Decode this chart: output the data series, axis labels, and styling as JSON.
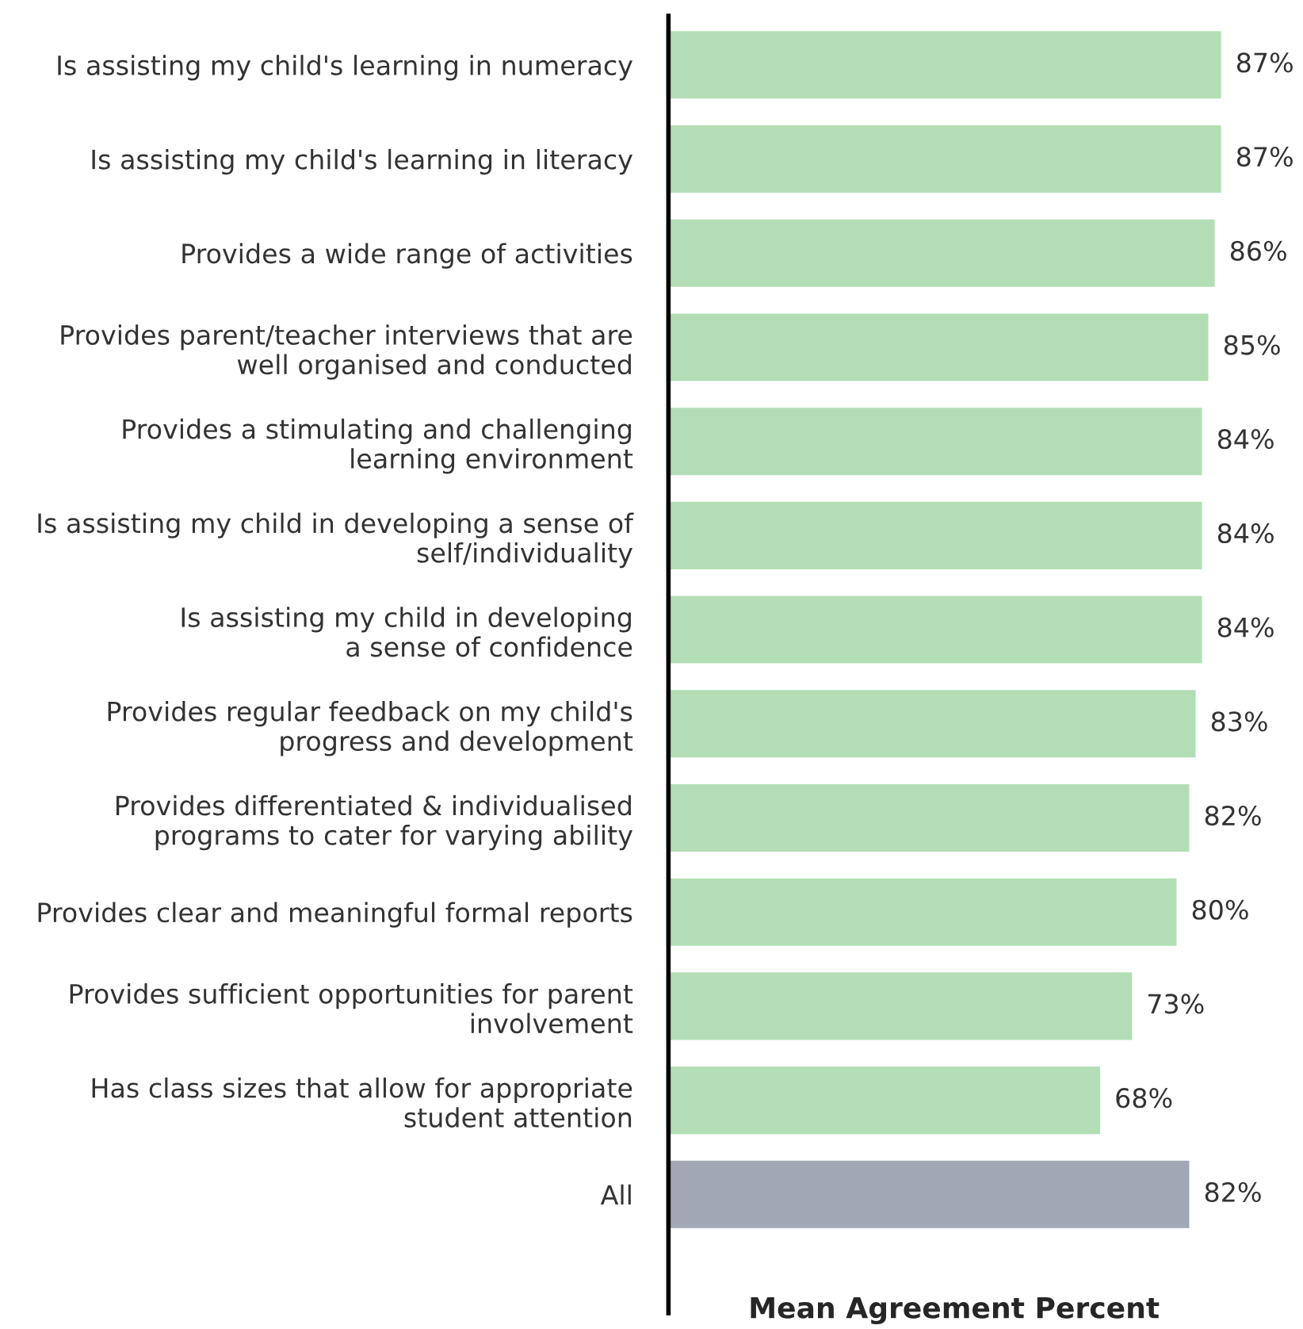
{
  "chart_data": {
    "type": "bar",
    "orientation": "horizontal",
    "xlabel": "Mean Agreement Percent",
    "categories": [
      "Is assisting my child's learning in numeracy",
      "Is assisting my child's learning in literacy",
      "Provides a wide range of activities",
      "Provides parent/teacher interviews that are\nwell organised and conducted",
      "Provides a stimulating and challenging\nlearning environment",
      "Is assisting my child in developing a sense of\nself/individuality",
      "Is assisting my child in developing\na sense of confidence",
      "Provides regular feedback on my child's\nprogress and development",
      "Provides differentiated & individualised\nprograms to cater for varying ability",
      "Provides clear and meaningful formal reports",
      "Provides sufficient opportunities for parent\ninvolvement",
      "Has class sizes that allow for appropriate\nstudent attention",
      "All"
    ],
    "values": [
      87,
      87,
      86,
      85,
      84,
      84,
      84,
      83,
      82,
      80,
      73,
      68,
      82
    ],
    "value_labels": [
      "87%",
      "87%",
      "86%",
      "85%",
      "84%",
      "84%",
      "84%",
      "83%",
      "82%",
      "80%",
      "73%",
      "68%",
      "82%"
    ],
    "colors": [
      "#b3deb5",
      "#b3deb5",
      "#b3deb5",
      "#b3deb5",
      "#b3deb5",
      "#b3deb5",
      "#b3deb5",
      "#b3deb5",
      "#b3deb5",
      "#b3deb5",
      "#b3deb5",
      "#b3deb5",
      "#a2a7b6"
    ],
    "grid": false,
    "legend": false
  }
}
